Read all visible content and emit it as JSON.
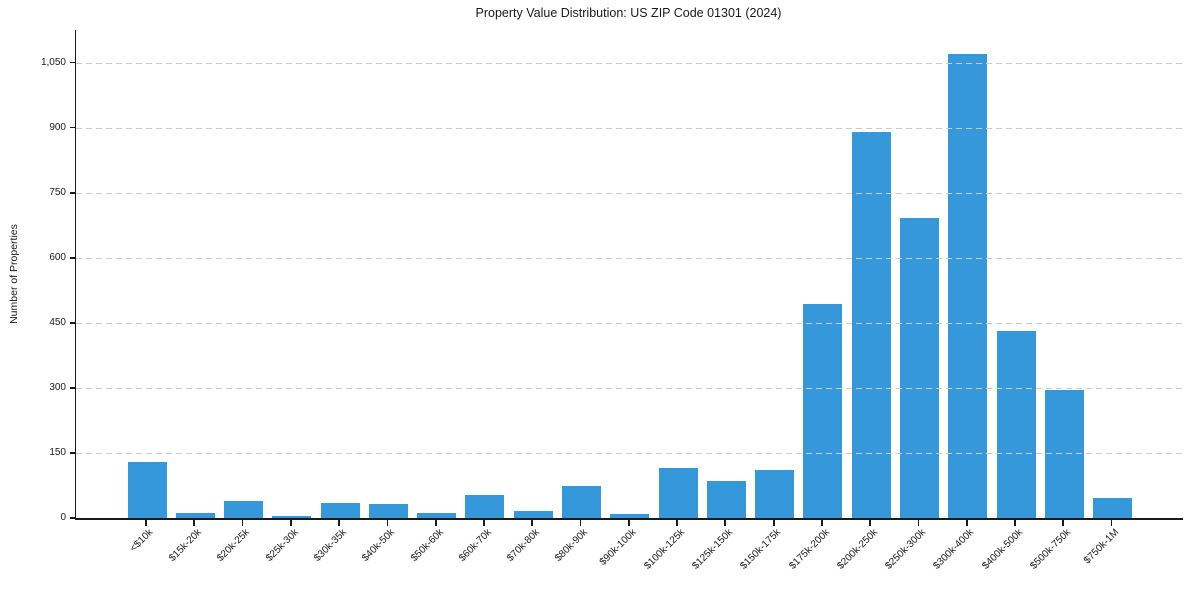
{
  "chart_data": {
    "type": "bar",
    "title": "Property Value Distribution: US ZIP Code 01301 (2024)",
    "xlabel": "",
    "ylabel": "Number of Properties",
    "categories": [
      "<$10k",
      "$15k-20k",
      "$20k-25k",
      "$25k-30k",
      "$30k-35k",
      "$40k-50k",
      "$50k-60k",
      "$60k-70k",
      "$70k-80k",
      "$80k-90k",
      "$90k-100k",
      "$100k-125k",
      "$125k-150k",
      "$150k-175k",
      "$175k-200k",
      "$200k-250k",
      "$250k-300k",
      "$300k-400k",
      "$400k-500k",
      "$500k-750k",
      "$750k-1M"
    ],
    "values": [
      128,
      12,
      40,
      5,
      35,
      33,
      12,
      54,
      17,
      74,
      10,
      115,
      86,
      110,
      493,
      890,
      692,
      1070,
      430,
      295,
      46
    ],
    "yticks": [
      0,
      150,
      300,
      450,
      600,
      750,
      900,
      1050
    ],
    "ylim": [
      0,
      1125
    ],
    "x_tick_rotation_deg": 45,
    "legend": null,
    "grid": "horizontal-dashed",
    "bar_color": "#3498db",
    "grid_color": "#cbcbcb",
    "axis_color": "#1a1a1a",
    "text_color": "#1a1a1a",
    "background_color": "#ffffff"
  }
}
